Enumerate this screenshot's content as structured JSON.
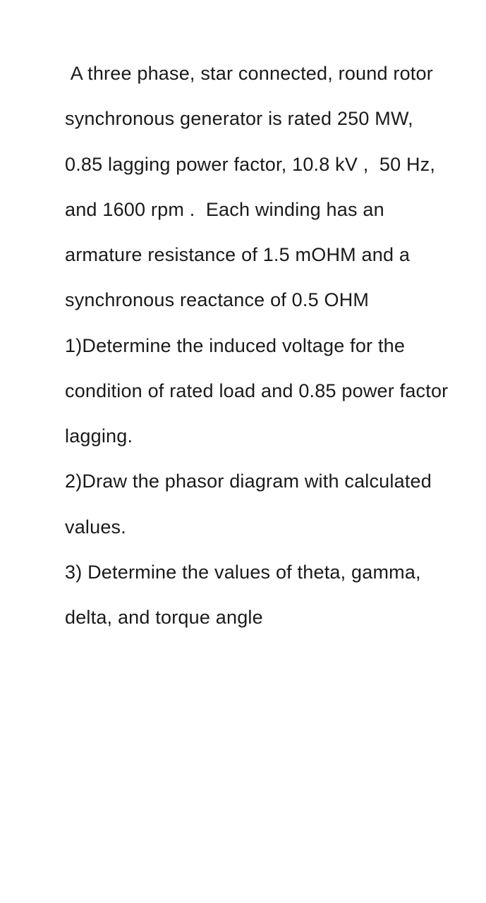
{
  "colors": {
    "background": "#ffffff",
    "text": "#1a1a1a"
  },
  "typography": {
    "font_family": "Arial, Helvetica, sans-serif",
    "font_size_pt": 20,
    "line_height": 2.38,
    "font_weight": 400
  },
  "problem": {
    "statement": " A three phase, star connected, round rotor synchronous generator is rated 250 MW,  0.85 lagging power factor, 10.8 kV ,  50 Hz,  and 1600 rpm .  Each winding has an armature resistance of 1.5 mOHM and a synchronous reactance of 0.5 OHM",
    "q1": "1)Determine the induced voltage for the condition of rated load and 0.85 power factor lagging.",
    "q2": "2)Draw the phasor diagram with calculated values.",
    "q3": "3) Determine the values of theta, gamma, delta, and torque angle"
  }
}
